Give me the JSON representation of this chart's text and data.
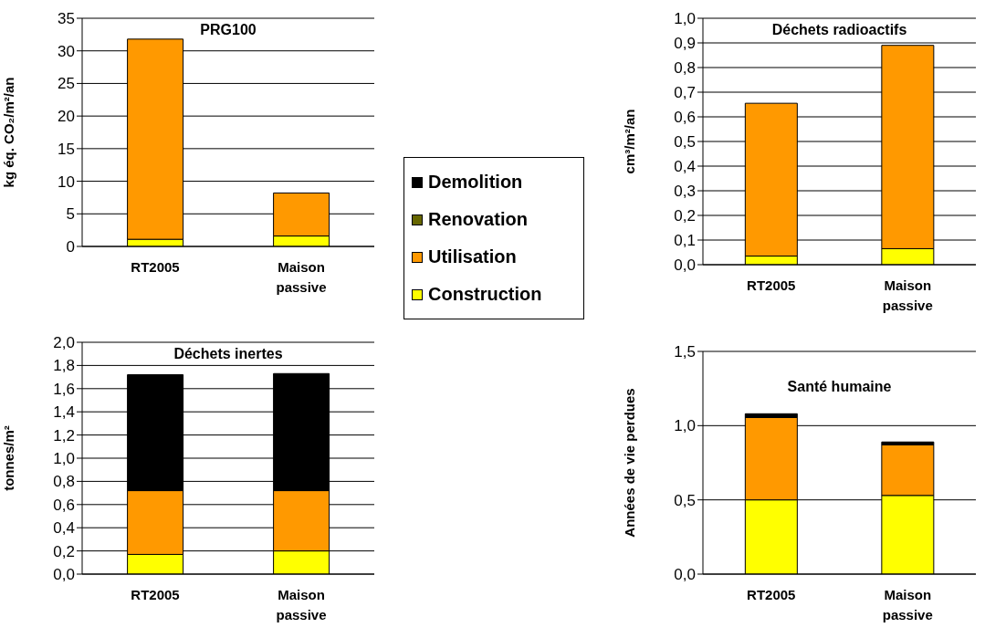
{
  "chart_data": [
    {
      "type": "bar",
      "title": "PRG100",
      "ylabel": "kg  éq. CO₂/m²/an",
      "categories": [
        "RT2005",
        "Maison passive"
      ],
      "stacked": true,
      "legend": "right",
      "grid": "y",
      "ylim": [
        0,
        35
      ],
      "yticks": [
        0,
        5,
        10,
        15,
        20,
        25,
        30,
        35
      ],
      "series": [
        {
          "name": "Construction",
          "color": "#ffff00",
          "values": [
            1.1,
            1.6
          ]
        },
        {
          "name": "Utilisation",
          "color": "#ff9900",
          "values": [
            30.7,
            6.6
          ]
        },
        {
          "name": "Renovation",
          "color": "#666600",
          "values": [
            0,
            0
          ]
        },
        {
          "name": "Demolition",
          "color": "#000000",
          "values": [
            0,
            0
          ]
        }
      ]
    },
    {
      "type": "bar",
      "title": "Déchets radioactifs",
      "ylabel": "cm³/m²/an",
      "categories": [
        "RT2005",
        "Maison passive"
      ],
      "stacked": true,
      "grid": "y",
      "ylim": [
        0,
        1
      ],
      "yticks": [
        {
          "value": 0,
          "label": "0,0"
        },
        {
          "value": 0.1,
          "label": "0,1"
        },
        {
          "value": 0.2,
          "label": "0,2"
        },
        {
          "value": 0.3,
          "label": "0,3"
        },
        {
          "value": 0.4,
          "label": "0,4"
        },
        {
          "value": 0.5,
          "label": "0,5"
        },
        {
          "value": 0.6,
          "label": "0,6"
        },
        {
          "value": 0.7,
          "label": "0,7"
        },
        {
          "value": 0.8,
          "label": "0,8"
        },
        {
          "value": 0.9,
          "label": "0,9"
        },
        {
          "value": 1,
          "label": "1,0"
        }
      ],
      "series": [
        {
          "color": "#ffff00",
          "values": [
            0.035,
            0.065
          ]
        },
        {
          "color": "#ff9900",
          "values": [
            0.62,
            0.825
          ]
        }
      ]
    },
    {
      "type": "bar",
      "title": "Déchets inertes",
      "ylabel": "tonnes/m²",
      "categories": [
        "RT2005",
        "Maison passive"
      ],
      "stacked": true,
      "grid": "y",
      "ylim": [
        0,
        2
      ],
      "yticks": [
        {
          "value": 0,
          "label": "0,0"
        },
        {
          "value": 0.2,
          "label": "0,2"
        },
        {
          "value": 0.4,
          "label": "0,4"
        },
        {
          "value": 0.6,
          "label": "0,6"
        },
        {
          "value": 0.8,
          "label": "0,8"
        },
        {
          "value": 1,
          "label": "1,0"
        },
        {
          "value": 1.2,
          "label": "1,2"
        },
        {
          "value": 1.4,
          "label": "1,4"
        },
        {
          "value": 1.6,
          "label": "1,6"
        },
        {
          "value": 1.8,
          "label": "1,8"
        },
        {
          "value": 2,
          "label": "2,0"
        }
      ],
      "series": [
        {
          "color": "#ffff00",
          "values": [
            0.17,
            0.2
          ]
        },
        {
          "color": "#ff9900",
          "values": [
            0.55,
            0.52
          ]
        },
        {
          "color": "#000000",
          "values": [
            1.0,
            1.01
          ]
        }
      ]
    },
    {
      "type": "bar",
      "title": "Santé humaine",
      "ylabel": "Années de vie perdues",
      "categories": [
        "RT2005",
        "Maison passive"
      ],
      "stacked": true,
      "grid": "y",
      "ylim": [
        0,
        1.5
      ],
      "yticks": [
        {
          "value": 0,
          "label": "0,0"
        },
        {
          "value": 0.5,
          "label": "0,5"
        },
        {
          "value": 1,
          "label": "1,0"
        },
        {
          "value": 1.5,
          "label": "1,5"
        }
      ],
      "series": [
        {
          "color": "#ffff00",
          "values": [
            0.5,
            0.53
          ]
        },
        {
          "color": "#ff9900",
          "values": [
            0.555,
            0.34
          ]
        },
        {
          "color": "#000000",
          "values": [
            0.025,
            0.02
          ]
        }
      ]
    }
  ]
}
